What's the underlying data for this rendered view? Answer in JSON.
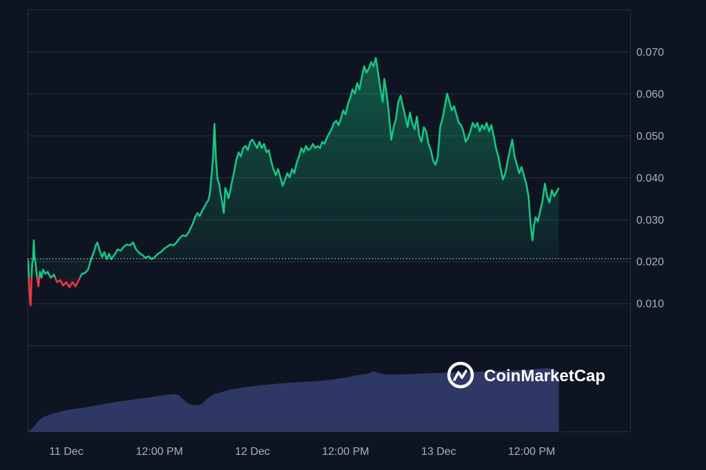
{
  "chart_data": {
    "type": "area",
    "watermark": "CoinMarketCap",
    "baseline_value": 0.0206,
    "colors": {
      "background": "#0e1421",
      "grid": "#2a3140",
      "up_line": "#16c784",
      "down_line": "#ea3943",
      "volume": "#2f3864",
      "tick_text": "#a7b1c2",
      "baseline": "#c9ced6"
    },
    "y_axis": {
      "ticks": [
        "0.070",
        "0.060",
        "0.050",
        "0.040",
        "0.030",
        "0.020",
        "0.010"
      ],
      "tick_values": [
        0.07,
        0.06,
        0.05,
        0.04,
        0.03,
        0.02,
        0.01
      ],
      "range": [
        -0.0206,
        0.0797
      ]
    },
    "x_axis": {
      "ticks": [
        "11 Dec",
        "12:00 PM",
        "12 Dec",
        "12:00 PM",
        "13 Dec",
        "12:00 PM"
      ],
      "tick_hours": [
        24,
        36,
        48,
        60,
        72,
        84
      ],
      "range_hours": [
        19.0,
        96.7
      ]
    },
    "series": [
      {
        "points": [
          [
            19.0,
            0.0205
          ],
          [
            19.1,
            0.0195
          ],
          [
            19.2,
            0.0145
          ],
          [
            19.3,
            0.0108
          ],
          [
            19.4,
            0.0095
          ],
          [
            19.5,
            0.015
          ],
          [
            19.6,
            0.0195
          ],
          [
            19.7,
            0.0205
          ],
          [
            19.8,
            0.025
          ],
          [
            19.9,
            0.021
          ],
          [
            20.0,
            0.02
          ],
          [
            20.2,
            0.0165
          ],
          [
            20.4,
            0.014
          ],
          [
            20.6,
            0.0175
          ],
          [
            20.8,
            0.016
          ],
          [
            21.0,
            0.018
          ],
          [
            21.3,
            0.017
          ],
          [
            21.6,
            0.0175
          ],
          [
            22.0,
            0.016
          ],
          [
            22.4,
            0.0168
          ],
          [
            22.8,
            0.015
          ],
          [
            23.2,
            0.0155
          ],
          [
            23.6,
            0.0142
          ],
          [
            24.0,
            0.015
          ],
          [
            24.4,
            0.0138
          ],
          [
            24.8,
            0.015
          ],
          [
            25.2,
            0.014
          ],
          [
            25.6,
            0.0155
          ],
          [
            26.0,
            0.017
          ],
          [
            26.4,
            0.0172
          ],
          [
            26.8,
            0.018
          ],
          [
            27.2,
            0.0205
          ],
          [
            27.4,
            0.0215
          ],
          [
            27.6,
            0.0225
          ],
          [
            27.8,
            0.0238
          ],
          [
            28.0,
            0.0245
          ],
          [
            28.3,
            0.0225
          ],
          [
            28.6,
            0.021
          ],
          [
            28.9,
            0.0222
          ],
          [
            29.2,
            0.0205
          ],
          [
            29.5,
            0.0218
          ],
          [
            29.8,
            0.0205
          ],
          [
            30.2,
            0.0215
          ],
          [
            30.6,
            0.0228
          ],
          [
            31.0,
            0.0225
          ],
          [
            31.4,
            0.0235
          ],
          [
            31.8,
            0.024
          ],
          [
            32.2,
            0.0238
          ],
          [
            32.6,
            0.0245
          ],
          [
            33.0,
            0.0228
          ],
          [
            33.4,
            0.022
          ],
          [
            33.8,
            0.0215
          ],
          [
            34.2,
            0.0208
          ],
          [
            34.6,
            0.0212
          ],
          [
            35.0,
            0.0205
          ],
          [
            35.4,
            0.021
          ],
          [
            35.8,
            0.0218
          ],
          [
            36.2,
            0.0222
          ],
          [
            36.6,
            0.023
          ],
          [
            37.0,
            0.0235
          ],
          [
            37.4,
            0.024
          ],
          [
            37.8,
            0.0238
          ],
          [
            38.2,
            0.0245
          ],
          [
            38.6,
            0.0255
          ],
          [
            39.0,
            0.0262
          ],
          [
            39.4,
            0.026
          ],
          [
            39.8,
            0.027
          ],
          [
            40.0,
            0.0278
          ],
          [
            40.3,
            0.029
          ],
          [
            40.6,
            0.0305
          ],
          [
            40.9,
            0.0315
          ],
          [
            41.2,
            0.0308
          ],
          [
            41.5,
            0.032
          ],
          [
            41.8,
            0.033
          ],
          [
            42.1,
            0.034
          ],
          [
            42.3,
            0.0345
          ],
          [
            42.5,
            0.036
          ],
          [
            42.7,
            0.04
          ],
          [
            42.9,
            0.0445
          ],
          [
            43.1,
            0.0528
          ],
          [
            43.3,
            0.044
          ],
          [
            43.5,
            0.0395
          ],
          [
            43.7,
            0.0385
          ],
          [
            43.9,
            0.036
          ],
          [
            44.1,
            0.034
          ],
          [
            44.3,
            0.0315
          ],
          [
            44.5,
            0.0375
          ],
          [
            44.7,
            0.0365
          ],
          [
            44.9,
            0.035
          ],
          [
            45.1,
            0.0365
          ],
          [
            45.3,
            0.0385
          ],
          [
            45.6,
            0.041
          ],
          [
            45.9,
            0.044
          ],
          [
            46.2,
            0.046
          ],
          [
            46.5,
            0.045
          ],
          [
            46.8,
            0.047
          ],
          [
            47.1,
            0.0475
          ],
          [
            47.4,
            0.0465
          ],
          [
            47.7,
            0.0485
          ],
          [
            48.0,
            0.049
          ],
          [
            48.3,
            0.048
          ],
          [
            48.6,
            0.047
          ],
          [
            48.9,
            0.0485
          ],
          [
            49.2,
            0.047
          ],
          [
            49.5,
            0.048
          ],
          [
            49.8,
            0.046
          ],
          [
            50.1,
            0.0465
          ],
          [
            50.4,
            0.044
          ],
          [
            50.7,
            0.042
          ],
          [
            51.0,
            0.0405
          ],
          [
            51.3,
            0.042
          ],
          [
            51.6,
            0.04
          ],
          [
            51.9,
            0.038
          ],
          [
            52.2,
            0.0395
          ],
          [
            52.5,
            0.041
          ],
          [
            52.8,
            0.04
          ],
          [
            53.1,
            0.042
          ],
          [
            53.4,
            0.041
          ],
          [
            53.7,
            0.0435
          ],
          [
            54.0,
            0.045
          ],
          [
            54.3,
            0.047
          ],
          [
            54.6,
            0.046
          ],
          [
            54.9,
            0.0475
          ],
          [
            55.2,
            0.0465
          ],
          [
            55.5,
            0.047
          ],
          [
            55.8,
            0.048
          ],
          [
            56.1,
            0.047
          ],
          [
            56.4,
            0.0475
          ],
          [
            56.7,
            0.047
          ],
          [
            57.0,
            0.0485
          ],
          [
            57.3,
            0.048
          ],
          [
            57.6,
            0.0495
          ],
          [
            57.9,
            0.0505
          ],
          [
            58.2,
            0.0515
          ],
          [
            58.5,
            0.053
          ],
          [
            58.8,
            0.0535
          ],
          [
            59.1,
            0.0525
          ],
          [
            59.4,
            0.054
          ],
          [
            59.7,
            0.056
          ],
          [
            60.0,
            0.055
          ],
          [
            60.3,
            0.0575
          ],
          [
            60.6,
            0.059
          ],
          [
            60.9,
            0.061
          ],
          [
            61.2,
            0.06
          ],
          [
            61.5,
            0.0625
          ],
          [
            61.8,
            0.061
          ],
          [
            62.1,
            0.064
          ],
          [
            62.4,
            0.0665
          ],
          [
            62.7,
            0.065
          ],
          [
            63.0,
            0.066
          ],
          [
            63.3,
            0.0675
          ],
          [
            63.6,
            0.0665
          ],
          [
            63.9,
            0.0685
          ],
          [
            64.2,
            0.065
          ],
          [
            64.5,
            0.061
          ],
          [
            64.8,
            0.058
          ],
          [
            65.0,
            0.0635
          ],
          [
            65.3,
            0.06
          ],
          [
            65.6,
            0.055
          ],
          [
            65.9,
            0.049
          ],
          [
            66.2,
            0.052
          ],
          [
            66.5,
            0.054
          ],
          [
            66.8,
            0.058
          ],
          [
            67.1,
            0.0595
          ],
          [
            67.4,
            0.057
          ],
          [
            67.7,
            0.0545
          ],
          [
            68.0,
            0.052
          ],
          [
            68.3,
            0.0555
          ],
          [
            68.6,
            0.053
          ],
          [
            68.9,
            0.0515
          ],
          [
            69.2,
            0.0545
          ],
          [
            69.5,
            0.05
          ],
          [
            69.8,
            0.0485
          ],
          [
            70.1,
            0.052
          ],
          [
            70.4,
            0.051
          ],
          [
            70.7,
            0.048
          ],
          [
            71.0,
            0.0465
          ],
          [
            71.3,
            0.044
          ],
          [
            71.6,
            0.043
          ],
          [
            71.9,
            0.045
          ],
          [
            72.2,
            0.052
          ],
          [
            72.5,
            0.054
          ],
          [
            72.8,
            0.057
          ],
          [
            73.1,
            0.06
          ],
          [
            73.4,
            0.058
          ],
          [
            73.7,
            0.056
          ],
          [
            74.0,
            0.057
          ],
          [
            74.3,
            0.055
          ],
          [
            74.6,
            0.053
          ],
          [
            74.9,
            0.0525
          ],
          [
            75.2,
            0.051
          ],
          [
            75.5,
            0.0485
          ],
          [
            75.8,
            0.0495
          ],
          [
            76.1,
            0.051
          ],
          [
            76.4,
            0.053
          ],
          [
            76.7,
            0.052
          ],
          [
            77.0,
            0.053
          ],
          [
            77.3,
            0.051
          ],
          [
            77.6,
            0.0525
          ],
          [
            77.9,
            0.0515
          ],
          [
            78.2,
            0.053
          ],
          [
            78.5,
            0.051
          ],
          [
            78.8,
            0.0525
          ],
          [
            79.1,
            0.05
          ],
          [
            79.4,
            0.047
          ],
          [
            79.7,
            0.045
          ],
          [
            80.0,
            0.042
          ],
          [
            80.3,
            0.0395
          ],
          [
            80.6,
            0.041
          ],
          [
            80.9,
            0.044
          ],
          [
            81.2,
            0.0465
          ],
          [
            81.5,
            0.049
          ],
          [
            81.8,
            0.045
          ],
          [
            82.1,
            0.043
          ],
          [
            82.4,
            0.041
          ],
          [
            82.7,
            0.0425
          ],
          [
            83.0,
            0.0405
          ],
          [
            83.3,
            0.0385
          ],
          [
            83.6,
            0.0355
          ],
          [
            83.9,
            0.028
          ],
          [
            84.1,
            0.025
          ],
          [
            84.3,
            0.0285
          ],
          [
            84.5,
            0.0305
          ],
          [
            84.8,
            0.0295
          ],
          [
            85.1,
            0.032
          ],
          [
            85.4,
            0.0345
          ],
          [
            85.7,
            0.0385
          ],
          [
            86.0,
            0.0355
          ],
          [
            86.3,
            0.034
          ],
          [
            86.6,
            0.037
          ],
          [
            86.9,
            0.0355
          ],
          [
            87.2,
            0.0365
          ],
          [
            87.5,
            0.0375
          ]
        ]
      },
      {
        "type": "volume",
        "points": [
          [
            19.0,
            0.0
          ],
          [
            19.5,
            0.0005
          ],
          [
            20.0,
            0.0015
          ],
          [
            20.5,
            0.0025
          ],
          [
            21.0,
            0.0032
          ],
          [
            22.0,
            0.0038
          ],
          [
            23.0,
            0.0043
          ],
          [
            24.0,
            0.0047
          ],
          [
            25.0,
            0.005
          ],
          [
            26.0,
            0.0052
          ],
          [
            27.0,
            0.0055
          ],
          [
            28.0,
            0.0058
          ],
          [
            29.0,
            0.0061
          ],
          [
            30.0,
            0.0064
          ],
          [
            31.0,
            0.0067
          ],
          [
            32.0,
            0.0069
          ],
          [
            33.0,
            0.0072
          ],
          [
            34.0,
            0.0074
          ],
          [
            35.0,
            0.0076
          ],
          [
            36.0,
            0.0079
          ],
          [
            37.0,
            0.0081
          ],
          [
            38.0,
            0.0083
          ],
          [
            38.5,
            0.008
          ],
          [
            39.0,
            0.0072
          ],
          [
            39.5,
            0.0064
          ],
          [
            40.0,
            0.006
          ],
          [
            40.5,
            0.0058
          ],
          [
            41.0,
            0.0058
          ],
          [
            41.5,
            0.0061
          ],
          [
            42.0,
            0.007
          ],
          [
            42.5,
            0.0077
          ],
          [
            43.0,
            0.0082
          ],
          [
            44.0,
            0.0087
          ],
          [
            45.0,
            0.0092
          ],
          [
            46.0,
            0.0095
          ],
          [
            47.0,
            0.0098
          ],
          [
            48.0,
            0.01
          ],
          [
            50.0,
            0.0104
          ],
          [
            52.0,
            0.0107
          ],
          [
            54.0,
            0.0109
          ],
          [
            56.0,
            0.0111
          ],
          [
            58.0,
            0.0114
          ],
          [
            60.0,
            0.0119
          ],
          [
            61.0,
            0.0123
          ],
          [
            62.0,
            0.0126
          ],
          [
            63.0,
            0.0128
          ],
          [
            63.5,
            0.0133
          ],
          [
            64.0,
            0.0131
          ],
          [
            65.0,
            0.0126
          ],
          [
            67.0,
            0.0126
          ],
          [
            70.0,
            0.0128
          ],
          [
            73.0,
            0.013
          ],
          [
            76.0,
            0.0132
          ],
          [
            79.0,
            0.0133
          ],
          [
            82.0,
            0.0135
          ],
          [
            84.0,
            0.0137
          ],
          [
            85.0,
            0.0139
          ],
          [
            86.0,
            0.014
          ],
          [
            87.0,
            0.0136
          ],
          [
            87.5,
            0.0133
          ]
        ]
      }
    ]
  }
}
